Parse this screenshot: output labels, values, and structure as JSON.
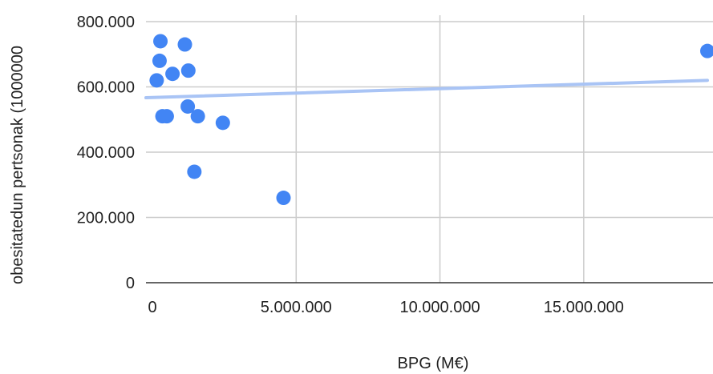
{
  "chart_data": {
    "type": "scatter",
    "xlabel": "BPG (M€)",
    "ylabel": "obesitatedun pertsonak (1000000",
    "x_ticks": [
      "0",
      "5.000.000",
      "10.000.000",
      "15.000.000"
    ],
    "y_ticks": [
      "0",
      "200.000",
      "400.000",
      "600.000",
      "800.000"
    ],
    "xlim": [
      0,
      19300000
    ],
    "ylim": [
      0,
      800000
    ],
    "grid": true,
    "legend": "none",
    "colors": {
      "points": "#4285f4",
      "trendline": "#a9c4f5",
      "grid": "#cccccc",
      "axis": "#333333"
    },
    "trendline": {
      "type": "linear",
      "start": [
        0,
        568000
      ],
      "end": [
        19300000,
        620000
      ]
    },
    "points": [
      {
        "x": 150000,
        "y": 620000
      },
      {
        "x": 250000,
        "y": 680000
      },
      {
        "x": 280000,
        "y": 740000
      },
      {
        "x": 350000,
        "y": 510000
      },
      {
        "x": 500000,
        "y": 510000
      },
      {
        "x": 700000,
        "y": 640000
      },
      {
        "x": 1130000,
        "y": 730000
      },
      {
        "x": 1230000,
        "y": 540000
      },
      {
        "x": 1250000,
        "y": 650000
      },
      {
        "x": 1460000,
        "y": 340000
      },
      {
        "x": 1580000,
        "y": 510000
      },
      {
        "x": 2450000,
        "y": 490000
      },
      {
        "x": 4560000,
        "y": 260000
      },
      {
        "x": 19300000,
        "y": 710000
      }
    ]
  }
}
